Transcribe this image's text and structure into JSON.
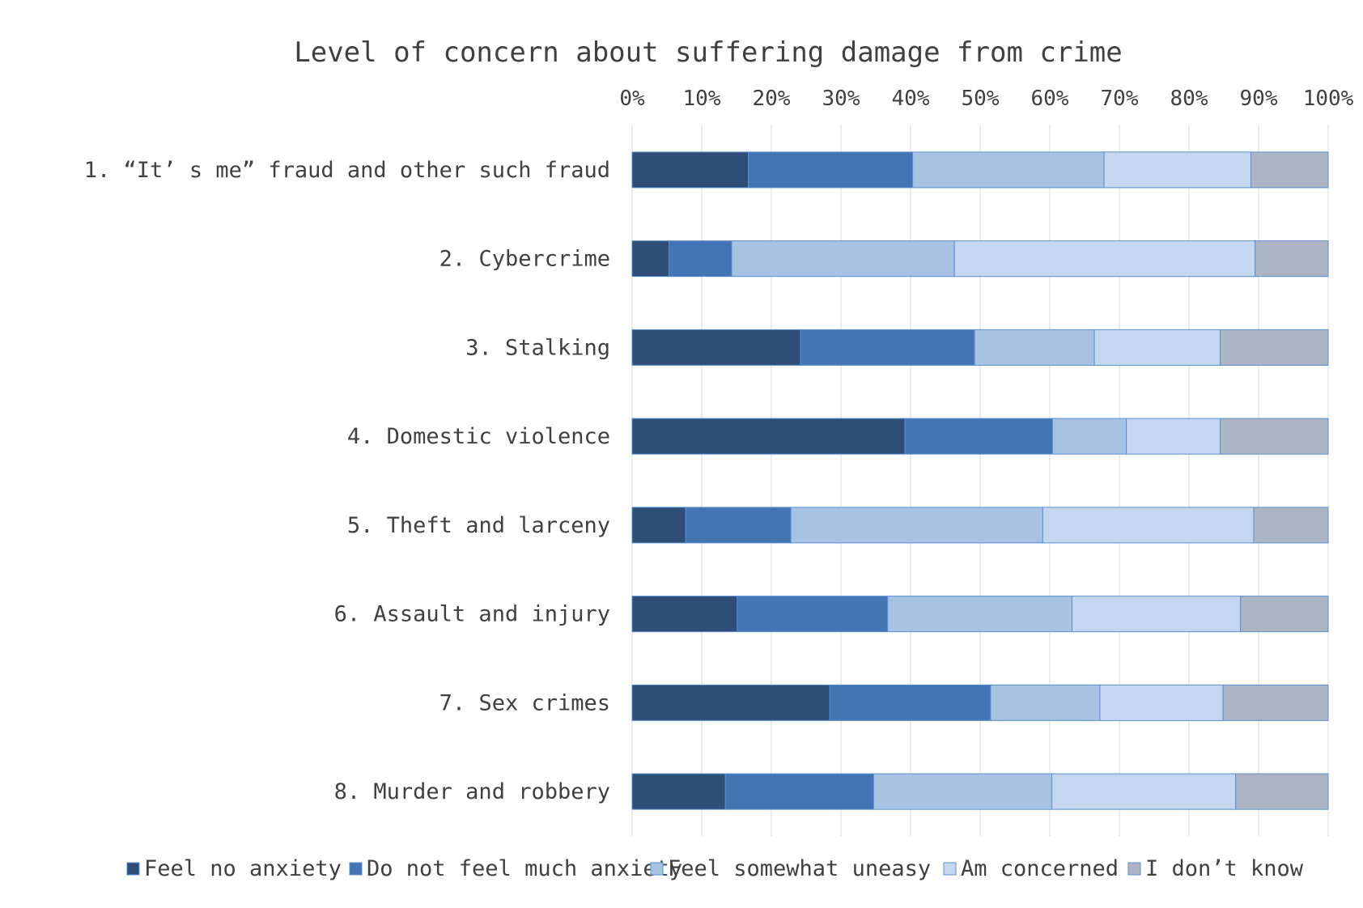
{
  "chart_data": {
    "type": "bar",
    "orientation": "horizontal",
    "stacked": true,
    "percent": true,
    "title": "Level of concern about suffering damage from crime",
    "categories": [
      "1. “It’ s me”  fraud and other such fraud",
      "2. Cybercrime",
      "3. Stalking",
      "4. Domestic violence",
      "5. Theft and larceny",
      "6. Assault and injury",
      "7. Sex crimes",
      "8. Murder and robbery"
    ],
    "series": [
      {
        "name": "Feel no anxiety",
        "color": "#2e4e78",
        "values": [
          16.7,
          5.3,
          24.2,
          39.2,
          7.7,
          15.1,
          28.4,
          13.4
        ]
      },
      {
        "name": "Do not feel much anxiety",
        "color": "#4374b3",
        "values": [
          23.6,
          9.0,
          25.0,
          21.2,
          15.1,
          21.6,
          23.1,
          21.3
        ]
      },
      {
        "name": "Feel somewhat uneasy",
        "color": "#a7c3e4",
        "values": [
          27.5,
          32.0,
          17.2,
          10.6,
          36.2,
          26.5,
          15.7,
          25.6
        ]
      },
      {
        "name": "Am concerned",
        "color": "#c4d7ee",
        "values": [
          21.1,
          43.2,
          18.1,
          13.5,
          30.3,
          24.2,
          17.7,
          26.4
        ]
      },
      {
        "name": "I don’t know",
        "color": "#adb5c5",
        "values": [
          11.1,
          10.5,
          15.5,
          15.5,
          10.7,
          12.6,
          15.1,
          13.3
        ]
      }
    ],
    "xlim": [
      0,
      100
    ],
    "x_ticks": [
      "0%",
      "10%",
      "20%",
      "30%",
      "40%",
      "50%",
      "60%",
      "70%",
      "80%",
      "90%",
      "100%"
    ],
    "x_axis_position": "top",
    "grid": true,
    "legend_position": "bottom"
  }
}
